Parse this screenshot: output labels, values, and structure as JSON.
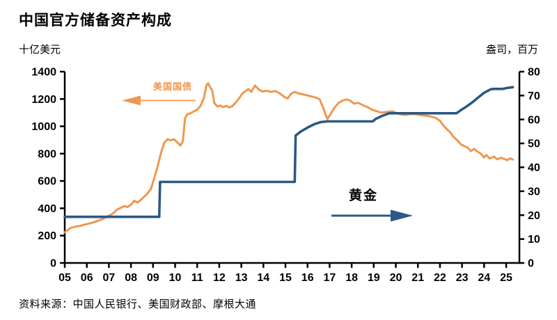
{
  "title": "中国官方储备资产构成",
  "left_axis_unit": "十亿美元",
  "right_axis_unit": "盎司，百万",
  "source": "资料来源：中国人民银行、美国财政部、摩根大通",
  "annotations": {
    "treasuries_label": "美国国债",
    "gold_label": "黄金"
  },
  "colors": {
    "treasuries": "#F0974E",
    "gold": "#2C5985",
    "axis": "#000000",
    "background": "#FFFFFF"
  },
  "chart_data": {
    "type": "line",
    "title": "中国官方储备资产构成",
    "grid": false,
    "legend": "inline-annotations-with-arrows",
    "x_axis": {
      "tick_years": [
        2005,
        2006,
        2007,
        2008,
        2009,
        2010,
        2011,
        2012,
        2013,
        2014,
        2015,
        2016,
        2017,
        2018,
        2019,
        2020,
        2021,
        2022,
        2023,
        2024,
        2025
      ],
      "tick_labels": [
        "05",
        "06",
        "07",
        "08",
        "09",
        "10",
        "11",
        "12",
        "13",
        "14",
        "15",
        "16",
        "17",
        "18",
        "19",
        "20",
        "21",
        "22",
        "23",
        "24",
        "25"
      ],
      "range": [
        2005,
        2025.6
      ]
    },
    "left_axis": {
      "label": "十亿美元",
      "ticks": [
        0,
        200,
        400,
        600,
        800,
        1000,
        1200,
        1400
      ],
      "range": [
        0,
        1400
      ],
      "series": "美国国债"
    },
    "right_axis": {
      "label": "盎司，百万",
      "ticks": [
        0,
        10,
        20,
        30,
        40,
        50,
        60,
        70,
        80
      ],
      "range": [
        0,
        80
      ],
      "series": "黄金"
    },
    "series": [
      {
        "name": "美国国债",
        "axis": "left",
        "color": "#F0974E",
        "width": 3,
        "points": [
          [
            2005.0,
            224
          ],
          [
            2005.1,
            236
          ],
          [
            2005.25,
            255
          ],
          [
            2005.45,
            265
          ],
          [
            2005.7,
            272
          ],
          [
            2005.95,
            282
          ],
          [
            2006.2,
            292
          ],
          [
            2006.45,
            305
          ],
          [
            2006.7,
            320
          ],
          [
            2006.95,
            342
          ],
          [
            2007.15,
            358
          ],
          [
            2007.35,
            388
          ],
          [
            2007.55,
            405
          ],
          [
            2007.7,
            416
          ],
          [
            2007.85,
            410
          ],
          [
            2008.0,
            426
          ],
          [
            2008.15,
            455
          ],
          [
            2008.3,
            442
          ],
          [
            2008.5,
            470
          ],
          [
            2008.7,
            500
          ],
          [
            2008.9,
            540
          ],
          [
            2009.05,
            618
          ],
          [
            2009.2,
            700
          ],
          [
            2009.35,
            800
          ],
          [
            2009.5,
            878
          ],
          [
            2009.65,
            905
          ],
          [
            2009.8,
            898
          ],
          [
            2009.95,
            905
          ],
          [
            2010.1,
            882
          ],
          [
            2010.25,
            860
          ],
          [
            2010.35,
            892
          ],
          [
            2010.45,
            1060
          ],
          [
            2010.55,
            1088
          ],
          [
            2010.7,
            1096
          ],
          [
            2010.85,
            1110
          ],
          [
            2011.0,
            1122
          ],
          [
            2011.15,
            1150
          ],
          [
            2011.3,
            1205
          ],
          [
            2011.42,
            1300
          ],
          [
            2011.5,
            1315
          ],
          [
            2011.58,
            1288
          ],
          [
            2011.68,
            1262
          ],
          [
            2011.78,
            1170
          ],
          [
            2011.92,
            1145
          ],
          [
            2012.05,
            1152
          ],
          [
            2012.18,
            1140
          ],
          [
            2012.32,
            1150
          ],
          [
            2012.45,
            1138
          ],
          [
            2012.6,
            1148
          ],
          [
            2012.75,
            1175
          ],
          [
            2012.9,
            1205
          ],
          [
            2013.05,
            1240
          ],
          [
            2013.2,
            1258
          ],
          [
            2013.32,
            1272
          ],
          [
            2013.45,
            1252
          ],
          [
            2013.62,
            1298
          ],
          [
            2013.8,
            1268
          ],
          [
            2013.95,
            1255
          ],
          [
            2014.15,
            1260
          ],
          [
            2014.35,
            1252
          ],
          [
            2014.55,
            1258
          ],
          [
            2014.75,
            1240
          ],
          [
            2014.95,
            1215
          ],
          [
            2015.1,
            1203
          ],
          [
            2015.25,
            1238
          ],
          [
            2015.42,
            1252
          ],
          [
            2015.6,
            1240
          ],
          [
            2015.85,
            1232
          ],
          [
            2016.1,
            1222
          ],
          [
            2016.35,
            1212
          ],
          [
            2016.55,
            1198
          ],
          [
            2016.72,
            1130
          ],
          [
            2016.9,
            1052
          ],
          [
            2017.05,
            1092
          ],
          [
            2017.2,
            1132
          ],
          [
            2017.4,
            1170
          ],
          [
            2017.6,
            1190
          ],
          [
            2017.8,
            1197
          ],
          [
            2017.95,
            1186
          ],
          [
            2018.1,
            1166
          ],
          [
            2018.3,
            1172
          ],
          [
            2018.5,
            1155
          ],
          [
            2018.7,
            1142
          ],
          [
            2018.9,
            1124
          ],
          [
            2019.1,
            1112
          ],
          [
            2019.35,
            1100
          ],
          [
            2019.6,
            1106
          ],
          [
            2019.85,
            1110
          ],
          [
            2020.1,
            1092
          ],
          [
            2020.4,
            1083
          ],
          [
            2020.7,
            1090
          ],
          [
            2020.95,
            1088
          ],
          [
            2021.2,
            1080
          ],
          [
            2021.5,
            1075
          ],
          [
            2021.8,
            1062
          ],
          [
            2022.0,
            1040
          ],
          [
            2022.15,
            1008
          ],
          [
            2022.3,
            980
          ],
          [
            2022.45,
            958
          ],
          [
            2022.6,
            925
          ],
          [
            2022.8,
            895
          ],
          [
            2022.95,
            868
          ],
          [
            2023.1,
            855
          ],
          [
            2023.25,
            845
          ],
          [
            2023.4,
            818
          ],
          [
            2023.55,
            835
          ],
          [
            2023.7,
            815
          ],
          [
            2023.85,
            800
          ],
          [
            2024.0,
            772
          ],
          [
            2024.1,
            790
          ],
          [
            2024.25,
            765
          ],
          [
            2024.45,
            778
          ],
          [
            2024.6,
            758
          ],
          [
            2024.75,
            770
          ],
          [
            2024.9,
            762
          ],
          [
            2025.05,
            752
          ],
          [
            2025.18,
            766
          ],
          [
            2025.3,
            757
          ]
        ]
      },
      {
        "name": "黄金",
        "axis": "right",
        "color": "#2C5985",
        "width": 3.6,
        "points": [
          [
            2005.0,
            19.3
          ],
          [
            2009.28,
            19.3
          ],
          [
            2009.32,
            33.9
          ],
          [
            2015.42,
            33.9
          ],
          [
            2015.46,
            53.3
          ],
          [
            2015.7,
            55.0
          ],
          [
            2016.0,
            56.6
          ],
          [
            2016.3,
            58.0
          ],
          [
            2016.6,
            58.9
          ],
          [
            2016.9,
            59.2
          ],
          [
            2018.95,
            59.2
          ],
          [
            2019.1,
            60.3
          ],
          [
            2019.4,
            61.6
          ],
          [
            2019.7,
            62.6
          ],
          [
            2022.75,
            62.6
          ],
          [
            2022.95,
            63.9
          ],
          [
            2023.2,
            65.4
          ],
          [
            2023.5,
            67.4
          ],
          [
            2023.8,
            69.7
          ],
          [
            2024.0,
            71.2
          ],
          [
            2024.3,
            72.6
          ],
          [
            2024.4,
            72.8
          ],
          [
            2024.85,
            72.8
          ],
          [
            2025.05,
            73.2
          ],
          [
            2025.3,
            73.5
          ]
        ]
      }
    ]
  }
}
